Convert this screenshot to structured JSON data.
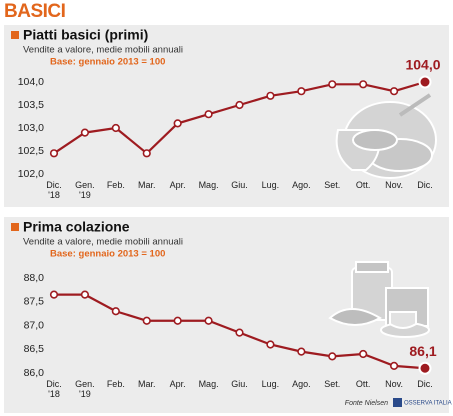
{
  "header_title": "BASICI",
  "chart_data": [
    {
      "type": "line",
      "title": "Piatti basici (primi)",
      "subtitle": "Vendite a valore, medie mobili annuali",
      "base_note": "Base: gennaio 2013 = 100",
      "categories": [
        "Dic.\n'18",
        "Gen.\n'19",
        "Feb.",
        "Mar.",
        "Apr.",
        "Mag.",
        "Giu.",
        "Lug.",
        "Ago.",
        "Set.",
        "Ott.",
        "Nov.",
        "Dic."
      ],
      "values": [
        102.45,
        102.9,
        103.0,
        102.45,
        103.1,
        103.3,
        103.5,
        103.7,
        103.8,
        103.95,
        103.95,
        103.8,
        104.0
      ],
      "value_labels": [
        null,
        null,
        null,
        null,
        null,
        null,
        null,
        null,
        null,
        null,
        null,
        null,
        "104,0"
      ],
      "color": "#9e1b20",
      "ylim": [
        102,
        104
      ],
      "yticks": [
        {
          "value": 102,
          "label": "102,0"
        },
        {
          "value": 102.5,
          "label": "102,5"
        },
        {
          "value": 103,
          "label": "103,0"
        },
        {
          "value": 103.5,
          "label": "103,5"
        },
        {
          "value": 104,
          "label": "104,0"
        }
      ],
      "grid": false
    },
    {
      "type": "line",
      "title": "Prima colazione",
      "subtitle": "Vendite a valore, medie mobili annuali",
      "base_note": "Base: gennaio 2013 = 100",
      "categories": [
        "Dic.\n'18",
        "Gen.\n'19",
        "Feb.",
        "Mar.",
        "Apr.",
        "Mag.",
        "Giu.",
        "Lug.",
        "Ago.",
        "Set.",
        "Ott.",
        "Nov.",
        "Dic."
      ],
      "values": [
        87.65,
        87.65,
        87.3,
        87.1,
        87.1,
        87.1,
        86.85,
        86.6,
        86.45,
        86.35,
        86.4,
        86.15,
        86.1
      ],
      "value_labels": [
        null,
        null,
        null,
        null,
        null,
        null,
        null,
        null,
        null,
        null,
        null,
        null,
        "86,1"
      ],
      "color": "#9e1b20",
      "ylim": [
        86,
        88
      ],
      "yticks": [
        {
          "value": 86,
          "label": "86,0"
        },
        {
          "value": 86.5,
          "label": "86,5"
        },
        {
          "value": 87,
          "label": "87,0"
        },
        {
          "value": 87.5,
          "label": "87,5"
        },
        {
          "value": 88,
          "label": "88,0"
        }
      ],
      "grid": false
    }
  ],
  "source": "Fonte Nielsen",
  "logo_text": "OSSERVA ITALIA"
}
